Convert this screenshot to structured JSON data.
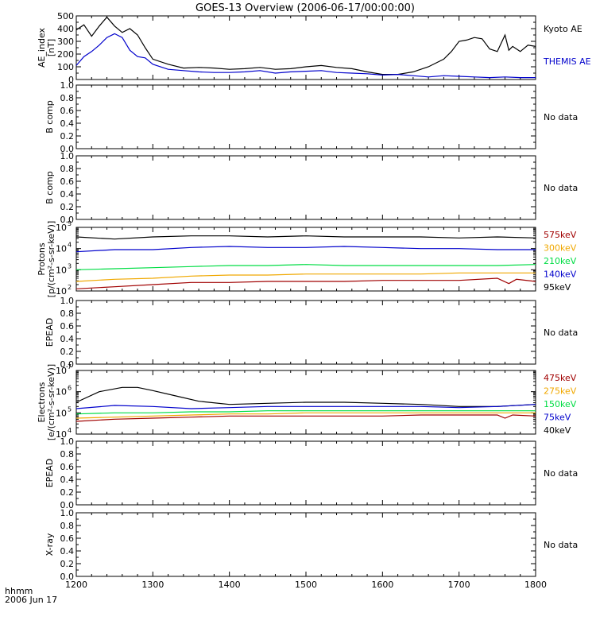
{
  "title": "GOES-13 Overview (2006-06-17/00:00:00)",
  "footer": {
    "line1": "hhmm",
    "line2": "2006 Jun 17"
  },
  "x_axis": {
    "min": 1200,
    "max": 1800,
    "ticks": [
      "1200",
      "1300",
      "1400",
      "1500",
      "1600",
      "1700",
      "1800"
    ]
  },
  "colors": {
    "black": "#000000",
    "blue": "#0000cc",
    "green": "#00dd44",
    "orange": "#f0a800",
    "darkred": "#a00000"
  },
  "chart_data": [
    {
      "type": "line",
      "ylabel": [
        "AE_index",
        "[nT]"
      ],
      "ylim": [
        0,
        500
      ],
      "yticks": [
        "0",
        "100",
        "200",
        "300",
        "400",
        "500"
      ],
      "legend": [
        {
          "label": "Kyoto AE",
          "color": "#000000"
        },
        {
          "label": "THEMIS AE",
          "color": "#0000cc"
        }
      ],
      "series": [
        {
          "name": "Kyoto AE",
          "color": "#000000",
          "x": [
            1200,
            1210,
            1220,
            1230,
            1240,
            1250,
            1260,
            1270,
            1280,
            1290,
            1300,
            1320,
            1340,
            1360,
            1380,
            1400,
            1420,
            1440,
            1460,
            1480,
            1500,
            1520,
            1540,
            1560,
            1580,
            1600,
            1620,
            1640,
            1660,
            1680,
            1690,
            1700,
            1710,
            1720,
            1730,
            1740,
            1750,
            1760,
            1765,
            1770,
            1780,
            1790,
            1800
          ],
          "y": [
            390,
            430,
            340,
            420,
            490,
            420,
            370,
            400,
            350,
            250,
            160,
            120,
            90,
            95,
            90,
            80,
            85,
            95,
            80,
            85,
            100,
            110,
            95,
            85,
            60,
            40,
            40,
            60,
            100,
            160,
            220,
            300,
            310,
            330,
            320,
            240,
            220,
            350,
            230,
            260,
            220,
            270,
            260
          ]
        },
        {
          "name": "THEMIS AE",
          "color": "#0000cc",
          "x": [
            1200,
            1210,
            1220,
            1230,
            1240,
            1250,
            1260,
            1270,
            1280,
            1290,
            1300,
            1320,
            1340,
            1360,
            1380,
            1400,
            1420,
            1440,
            1460,
            1480,
            1500,
            1520,
            1540,
            1560,
            1580,
            1600,
            1620,
            1640,
            1660,
            1680,
            1700,
            1720,
            1740,
            1760,
            1780,
            1800
          ],
          "y": [
            110,
            180,
            220,
            270,
            330,
            360,
            330,
            230,
            180,
            170,
            120,
            80,
            70,
            60,
            55,
            55,
            60,
            70,
            50,
            60,
            65,
            70,
            55,
            50,
            45,
            35,
            40,
            30,
            20,
            30,
            25,
            20,
            15,
            20,
            15,
            15
          ]
        }
      ]
    },
    {
      "type": "line",
      "ylabel": [
        "B comp"
      ],
      "ylim": [
        0,
        1
      ],
      "yticks": [
        "0.0",
        "0.2",
        "0.4",
        "0.6",
        "0.8",
        "1.0"
      ],
      "note": "No data"
    },
    {
      "type": "line",
      "ylabel": [
        "B comp"
      ],
      "ylim": [
        0,
        1
      ],
      "yticks": [
        "0.0",
        "0.2",
        "0.4",
        "0.6",
        "0.8",
        "1.0"
      ],
      "note": "No data"
    },
    {
      "type": "line",
      "ylabel": [
        "Protons",
        "[p/(cm²-s-sr-keV)]"
      ],
      "log_ylim": [
        2,
        5
      ],
      "yticks": [
        {
          "exp": "2",
          "v": 2
        },
        {
          "exp": "3",
          "v": 3
        },
        {
          "exp": "4",
          "v": 4
        },
        {
          "exp": "5",
          "v": 5
        }
      ],
      "legend": [
        {
          "label": "575keV",
          "color": "#a00000"
        },
        {
          "label": "300keV",
          "color": "#f0a800"
        },
        {
          "label": "210keV",
          "color": "#00dd44"
        },
        {
          "label": "140keV",
          "color": "#0000cc"
        },
        {
          "label": "95keV",
          "color": "#000000"
        }
      ],
      "series": [
        {
          "name": "95keV",
          "color": "#000000",
          "x": [
            1200,
            1250,
            1300,
            1350,
            1400,
            1450,
            1500,
            1550,
            1600,
            1650,
            1700,
            1750,
            1800
          ],
          "y": [
            4.55,
            4.45,
            4.55,
            4.6,
            4.6,
            4.55,
            4.6,
            4.55,
            4.55,
            4.55,
            4.5,
            4.55,
            4.5
          ]
        },
        {
          "name": "140keV",
          "color": "#0000cc",
          "x": [
            1200,
            1250,
            1300,
            1350,
            1400,
            1450,
            1500,
            1550,
            1600,
            1650,
            1700,
            1750,
            1800
          ],
          "y": [
            3.85,
            3.95,
            3.95,
            4.05,
            4.1,
            4.05,
            4.05,
            4.1,
            4.05,
            4.0,
            4.0,
            3.95,
            3.95
          ]
        },
        {
          "name": "210keV",
          "color": "#00dd44",
          "x": [
            1200,
            1250,
            1300,
            1350,
            1400,
            1450,
            1500,
            1550,
            1600,
            1650,
            1700,
            1750,
            1800
          ],
          "y": [
            3.0,
            3.05,
            3.1,
            3.15,
            3.2,
            3.2,
            3.25,
            3.2,
            3.2,
            3.2,
            3.2,
            3.2,
            3.25
          ]
        },
        {
          "name": "300keV",
          "color": "#f0a800",
          "x": [
            1200,
            1250,
            1300,
            1350,
            1400,
            1450,
            1500,
            1550,
            1600,
            1650,
            1700,
            1750,
            1800
          ],
          "y": [
            2.45,
            2.55,
            2.6,
            2.7,
            2.75,
            2.75,
            2.8,
            2.8,
            2.8,
            2.8,
            2.85,
            2.85,
            2.85
          ]
        },
        {
          "name": "575keV",
          "color": "#a00000",
          "x": [
            1200,
            1250,
            1300,
            1350,
            1400,
            1450,
            1500,
            1550,
            1600,
            1650,
            1700,
            1750,
            1765,
            1775,
            1800
          ],
          "y": [
            2.1,
            2.2,
            2.3,
            2.4,
            2.4,
            2.45,
            2.45,
            2.45,
            2.5,
            2.5,
            2.5,
            2.6,
            2.35,
            2.55,
            2.45
          ]
        }
      ]
    },
    {
      "type": "line",
      "ylabel": [
        "EPEAD"
      ],
      "ylim": [
        0,
        1
      ],
      "yticks": [
        "0.0",
        "0.2",
        "0.4",
        "0.6",
        "0.8",
        "1.0"
      ],
      "note": "No data"
    },
    {
      "type": "line",
      "ylabel": [
        "Electrons",
        "[e/(cm²-s-sr-keV)]"
      ],
      "log_ylim": [
        4,
        7
      ],
      "yticks": [
        {
          "exp": "4",
          "v": 4
        },
        {
          "exp": "5",
          "v": 5
        },
        {
          "exp": "6",
          "v": 6
        },
        {
          "exp": "7",
          "v": 7
        }
      ],
      "legend": [
        {
          "label": "475keV",
          "color": "#a00000"
        },
        {
          "label": "275keV",
          "color": "#f0a800"
        },
        {
          "label": "150keV",
          "color": "#00dd44"
        },
        {
          "label": "75keV",
          "color": "#0000cc"
        },
        {
          "label": "40keV",
          "color": "#000000"
        }
      ],
      "series": [
        {
          "name": "40keV",
          "color": "#000000",
          "x": [
            1200,
            1230,
            1260,
            1280,
            1300,
            1330,
            1360,
            1400,
            1450,
            1500,
            1550,
            1600,
            1650,
            1700,
            1750,
            1800
          ],
          "y": [
            5.5,
            6.0,
            6.2,
            6.2,
            6.05,
            5.8,
            5.55,
            5.4,
            5.45,
            5.5,
            5.5,
            5.45,
            5.4,
            5.3,
            5.3,
            5.4
          ]
        },
        {
          "name": "75keV",
          "color": "#0000cc",
          "x": [
            1200,
            1250,
            1300,
            1350,
            1400,
            1450,
            1500,
            1550,
            1600,
            1650,
            1700,
            1750,
            1800
          ],
          "y": [
            5.2,
            5.35,
            5.3,
            5.2,
            5.25,
            5.3,
            5.3,
            5.3,
            5.3,
            5.3,
            5.25,
            5.3,
            5.4
          ]
        },
        {
          "name": "150keV",
          "color": "#00dd44",
          "x": [
            1200,
            1250,
            1300,
            1350,
            1400,
            1450,
            1500,
            1550,
            1600,
            1650,
            1700,
            1750,
            1800
          ],
          "y": [
            4.95,
            5.0,
            5.0,
            5.05,
            5.05,
            5.1,
            5.1,
            5.1,
            5.1,
            5.1,
            5.1,
            5.1,
            5.1
          ]
        },
        {
          "name": "275keV",
          "color": "#f0a800",
          "x": [
            1200,
            1250,
            1300,
            1350,
            1400,
            1450,
            1500,
            1550,
            1600,
            1650,
            1700,
            1750,
            1800
          ],
          "y": [
            4.75,
            4.8,
            4.85,
            4.9,
            4.95,
            4.95,
            5.0,
            5.0,
            5.0,
            5.0,
            5.0,
            5.0,
            5.0
          ]
        },
        {
          "name": "475keV",
          "color": "#a00000",
          "x": [
            1200,
            1250,
            1300,
            1350,
            1400,
            1450,
            1500,
            1550,
            1600,
            1650,
            1700,
            1750,
            1760,
            1770,
            1800
          ],
          "y": [
            4.6,
            4.7,
            4.75,
            4.8,
            4.85,
            4.85,
            4.85,
            4.85,
            4.85,
            4.9,
            4.9,
            4.9,
            4.75,
            4.9,
            4.85
          ]
        }
      ]
    },
    {
      "type": "line",
      "ylabel": [
        "EPEAD"
      ],
      "ylim": [
        0,
        1
      ],
      "yticks": [
        "0.0",
        "0.2",
        "0.4",
        "0.6",
        "0.8",
        "1.0"
      ],
      "note": "No data"
    },
    {
      "type": "line",
      "ylabel": [
        "X-ray"
      ],
      "ylim": [
        0,
        1
      ],
      "yticks": [
        "0.0",
        "0.2",
        "0.4",
        "0.6",
        "0.8",
        "1.0"
      ],
      "note": "No data"
    }
  ]
}
